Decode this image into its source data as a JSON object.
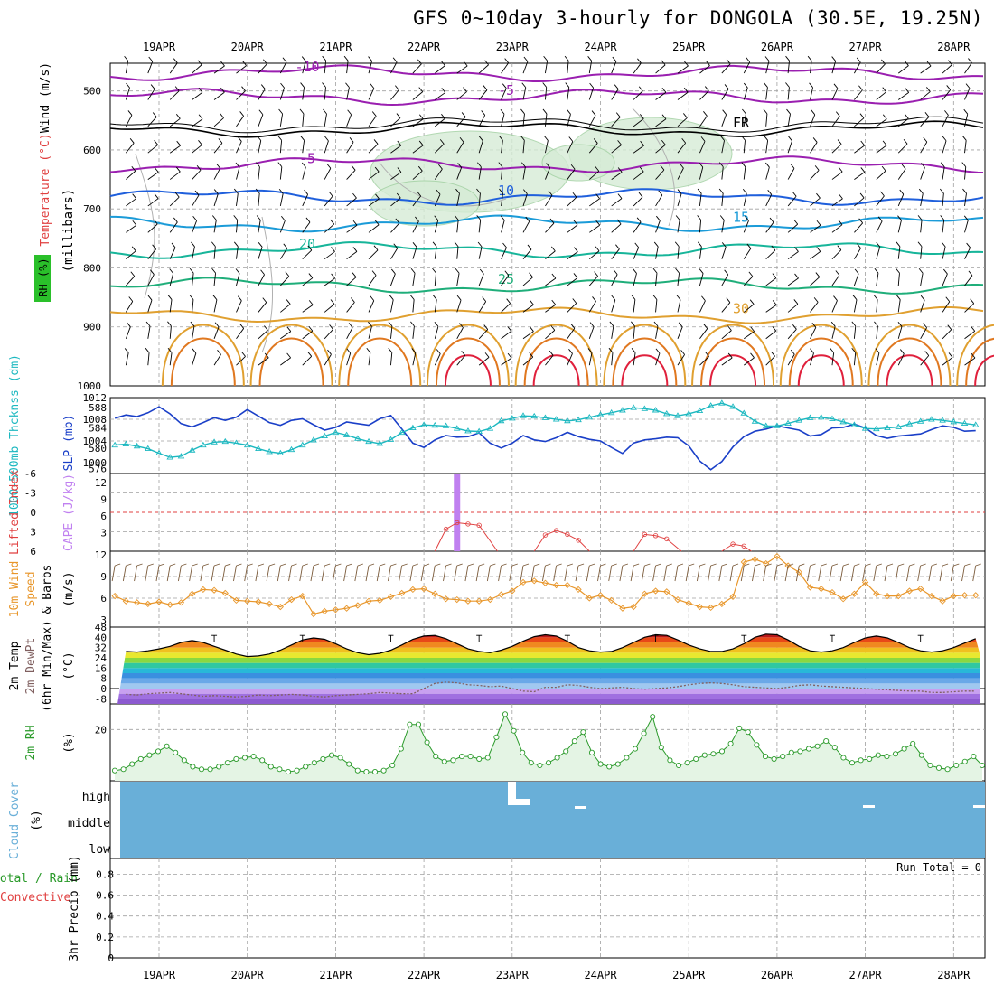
{
  "title": "GFS 0~10day 3-hourly for DONGOLA (30.5E, 19.25N)",
  "dates": [
    "19APR",
    "20APR",
    "21APR",
    "22APR",
    "23APR",
    "24APR",
    "25APR",
    "26APR",
    "27APR",
    "28APR"
  ],
  "colors": {
    "purple": "#9a1fb0",
    "black": "#000000",
    "blue": "#1f5fdc",
    "skyblue": "#1b9bd8",
    "teal": "#17b59a",
    "green": "#1fae7a",
    "orange": "#e0a030",
    "darkorange": "#e07820",
    "red": "#e0203c",
    "slp": "#1a3fc8",
    "thick": "#1cb8c0",
    "cape": "#c080f0",
    "li": "#e04040",
    "wind": "#e8962a",
    "barb": "#7a5a3a",
    "rh": "#2a9a2a",
    "rhfill": "#e4f4e4",
    "cloud": "#69afd8",
    "grid": "#a0a0a0"
  },
  "panels": {
    "profile": {
      "label_wind": "Wind (m/s)",
      "label_temp": "Temperature (°C)",
      "label_rh": "RH (%)",
      "label_mb": "(millibars)",
      "yticks": [
        "500",
        "600",
        "700",
        "800",
        "900",
        "1000"
      ],
      "contours": [
        {
          "label": "-10",
          "level": 470,
          "color": "purple"
        },
        {
          "label": "-5",
          "level": 510,
          "color": "purple"
        },
        {
          "label": "FR",
          "level": 565,
          "color": "black"
        },
        {
          "label": "-5",
          "level": 625,
          "color": "purple"
        },
        {
          "label": "10",
          "level": 680,
          "color": "blue"
        },
        {
          "label": "15",
          "level": 725,
          "color": "skyblue"
        },
        {
          "label": "20",
          "level": 770,
          "color": "teal"
        },
        {
          "label": "25",
          "level": 830,
          "color": "green"
        },
        {
          "label": "30",
          "level": 880,
          "color": "orange"
        }
      ]
    },
    "slp": {
      "label_thick": "1000-500mb Thcknss (dm)",
      "label_slp": "SLP (mb)",
      "left_ticks": [
        "588",
        "584",
        "580",
        "576"
      ],
      "right_ticks": [
        "1012",
        "1008",
        "1004",
        "1000"
      ]
    },
    "cape": {
      "label_li": "Lifted Index",
      "label_cape": "CAPE (J/kg)",
      "left_ticks": [
        "-6",
        "-3",
        "0",
        "3",
        "6"
      ],
      "right_ticks": [
        "12",
        "9",
        "6",
        "3"
      ]
    },
    "wind10": {
      "label_main": "10m Wind",
      "label_speed": "Speed",
      "label_barbs": "& Barbs",
      "label_units": "(m/s)",
      "yticks": [
        "12",
        "9",
        "6",
        "3"
      ]
    },
    "temp": {
      "label_1": "2m Temp",
      "label_2": "2m DewPt",
      "label_3": "(6hr Min/Max)",
      "label_units": "(°C)",
      "yticks": [
        "48",
        "40",
        "32",
        "24",
        "16",
        "8",
        "0",
        "-8"
      ]
    },
    "rh2m": {
      "label": "2m RH",
      "label_units": "(%)",
      "yticks": [
        "20"
      ]
    },
    "cloud": {
      "label": "Cloud Cover",
      "label_units": "(%)",
      "levels": [
        "high",
        "middle",
        "low"
      ]
    },
    "precip": {
      "label_total": "Total / Rain",
      "label_conv": "Convective",
      "label_main": "3hr Precip (mm)",
      "run_total": "Run Total = 0",
      "yticks": [
        "0.8",
        "0.6",
        "0.4",
        "0.2",
        "0"
      ]
    }
  },
  "chart_data": [
    {
      "type": "line",
      "name": "SLP (mb)",
      "ylim": [
        998,
        1012
      ],
      "values": [
        1007.5,
        1008.2,
        1008.8,
        1008.5,
        1009.2,
        1010.3,
        1009.0,
        1007.2,
        1006.6,
        1007.4,
        1008.3,
        1007.8,
        1008.4,
        1009.8,
        1008.6,
        1007.4,
        1006.9,
        1007.8,
        1008.1,
        1007.0,
        1006.0,
        1006.5,
        1007.5,
        1007.2,
        1006.9,
        1008.1,
        1008.7,
        1006.2,
        1003.6,
        1002.8,
        1004.2,
        1005.0,
        1004.7,
        1004.8,
        1005.5,
        1003.6,
        1002.7,
        1003.6,
        1005.0,
        1004.2,
        1003.9,
        1004.6,
        1005.6,
        1004.8,
        1004.3,
        1004.0,
        1002.8,
        1001.7,
        1003.6,
        1004.2,
        1004.4,
        1004.7,
        1004.6,
        1003.1,
        1000.3,
        998.7,
        1000.2,
        1002.9,
        1004.8,
        1005.8,
        1006.2,
        1006.8,
        1006.4,
        1006.0,
        1004.9,
        1005.2,
        1006.4,
        1006.5,
        1007.1,
        1006.4,
        1005.0,
        1004.5,
        1004.9,
        1005.1,
        1005.3,
        1006.1,
        1006.8,
        1006.5,
        1005.8,
        1005.9,
        1007.6,
        1005.9,
        1004.3,
        1003.2,
        1005.3,
        1006.4,
        1006.6,
        1006.9
      ]
    },
    {
      "type": "line",
      "name": "1000-500mb Thickness (dm)",
      "ylim": [
        575,
        590
      ],
      "values": [
        580.2,
        580.6,
        580.8,
        580.4,
        579.9,
        579.0,
        578.2,
        578.4,
        579.6,
        580.6,
        581.2,
        581.3,
        581.0,
        580.6,
        579.9,
        579.3,
        579.0,
        579.7,
        580.6,
        581.6,
        582.4,
        583.1,
        582.6,
        581.9,
        581.3,
        580.9,
        581.7,
        583.1,
        584.0,
        584.6,
        584.5,
        584.4,
        583.9,
        583.4,
        583.3,
        583.9,
        585.4,
        585.9,
        586.4,
        586.3,
        586.0,
        585.7,
        585.4,
        585.6,
        586.1,
        586.6,
        587.0,
        587.5,
        588.0,
        587.8,
        587.5,
        586.8,
        586.4,
        586.8,
        587.4,
        588.4,
        588.9,
        588.2,
        586.9,
        585.3,
        584.4,
        584.4,
        584.9,
        585.5,
        586.0,
        586.1,
        585.8,
        585.2,
        584.6,
        583.9,
        583.8,
        584.0,
        584.2,
        584.8,
        585.3,
        585.7,
        585.5,
        585.2,
        584.9,
        584.6,
        584.9,
        585.3,
        586.1,
        586.0,
        584.8,
        583.4,
        582.9,
        583.2
      ]
    },
    {
      "type": "line",
      "name": "10m Wind Speed (m/s)",
      "ylim": [
        3,
        12
      ],
      "values": [
        6.0,
        6.3,
        5.6,
        5.4,
        5.2,
        5.5,
        5.1,
        5.4,
        6.6,
        7.2,
        7.1,
        6.7,
        5.7,
        5.6,
        5.5,
        5.2,
        4.8,
        5.8,
        6.3,
        3.8,
        4.2,
        4.4,
        4.6,
        5.0,
        5.6,
        5.7,
        6.2,
        6.7,
        7.2,
        7.3,
        6.6,
        5.9,
        5.8,
        5.6,
        5.6,
        5.8,
        6.5,
        7.0,
        8.2,
        8.4,
        8.1,
        7.8,
        7.8,
        7.2,
        6.0,
        6.4,
        5.7,
        4.6,
        4.8,
        6.6,
        7.0,
        6.9,
        5.8,
        5.3,
        4.8,
        4.7,
        5.2,
        6.2,
        11.0,
        11.4,
        10.8,
        11.8,
        10.5,
        9.6,
        7.5,
        7.3,
        6.8,
        5.9,
        6.6,
        8.2,
        6.6,
        6.3,
        6.3,
        7.0,
        7.3,
        6.3,
        5.6,
        6.3,
        6.4,
        6.4,
        6.6,
        7.0,
        6.2,
        5.2,
        6.4,
        4.8,
        4.6,
        7.2
      ]
    },
    {
      "type": "area",
      "name": "2m Temp (°C)",
      "ylim": [
        -12,
        48
      ],
      "values": [
        30,
        29,
        28.5,
        29.5,
        31,
        33,
        36,
        37.5,
        36,
        33,
        30,
        27,
        25,
        25.5,
        27,
        30,
        34,
        38,
        39.5,
        38.5,
        35,
        31,
        28,
        26.5,
        27.5,
        30,
        34,
        38.5,
        41,
        41.5,
        39,
        35,
        31,
        29,
        28,
        30,
        33,
        37,
        40.5,
        42,
        41,
        37,
        32,
        29.5,
        28.5,
        29,
        32,
        36,
        40,
        42,
        41.5,
        38,
        34,
        31,
        29,
        29,
        31,
        35,
        40,
        42.5,
        42,
        38,
        33,
        29.5,
        28.5,
        29.5,
        32,
        36,
        39.5,
        41,
        39.5,
        36,
        32,
        29.5,
        28.5,
        29.5,
        32,
        35.5,
        39,
        40.5,
        39.5,
        36,
        32,
        29.5,
        28,
        29.5,
        32,
        35.5
      ]
    },
    {
      "type": "line",
      "name": "2m DewPt (°C)",
      "ylim": [
        -12,
        48
      ],
      "values": [
        -5,
        -4.5,
        -5,
        -4,
        -3.5,
        -3,
        -4,
        -5,
        -6,
        -5.5,
        -6,
        -6.5,
        -6,
        -5,
        -5.5,
        -5,
        -4.5,
        -5,
        -6,
        -6.5,
        -5.5,
        -5,
        -4.5,
        -4,
        -3,
        -3.5,
        -4,
        -4,
        0,
        4,
        5,
        4.5,
        3,
        2.5,
        1.5,
        2,
        0,
        -2,
        -2.5,
        1,
        1,
        3,
        2.5,
        1,
        0,
        0.5,
        1,
        0,
        -0.5,
        0,
        0.5,
        1.5,
        3,
        4,
        4.5,
        4,
        3,
        1.5,
        1,
        0.5,
        0,
        1,
        2.5,
        3,
        2,
        1.5,
        1,
        0.5,
        0,
        -0.5,
        -1,
        -1.5,
        -2,
        -2,
        -3,
        -3,
        -2.5,
        -2,
        -2,
        -3,
        -3.5,
        -4,
        -4.5,
        -5,
        -5.5,
        -6,
        -5.5,
        -6
      ]
    },
    {
      "type": "area",
      "name": "2m RH (%)",
      "ylim": [
        0,
        30
      ],
      "values": [
        4,
        4.5,
        6.5,
        8.5,
        10,
        11.5,
        13.5,
        11,
        8,
        5.5,
        4.5,
        4.5,
        5.5,
        7,
        8.5,
        9,
        9.5,
        8,
        5.5,
        4.5,
        3.5,
        4,
        5.5,
        7,
        8.5,
        10,
        9,
        6.5,
        4,
        3.5,
        3.5,
        4,
        6,
        12.5,
        22,
        22,
        15,
        9.5,
        7.5,
        8,
        9.5,
        9.5,
        8.5,
        9,
        17,
        26,
        19.5,
        11,
        7,
        6,
        7,
        9,
        11.5,
        15.5,
        19,
        11,
        6.5,
        5.5,
        6.5,
        9,
        12.5,
        18.5,
        25,
        13,
        8,
        6,
        7,
        8.5,
        10,
        10.5,
        11.5,
        14.5,
        20.5,
        19,
        14,
        9.5,
        8.5,
        9.5,
        11,
        11.5,
        12.5,
        13.5,
        15.5,
        13,
        9,
        7,
        8,
        8.5,
        10,
        9.5,
        10.5,
        12.5,
        14.5,
        10,
        6,
        5,
        4.5,
        6,
        7.5,
        9.5,
        6
      ]
    },
    {
      "type": "line",
      "name": "Lifted Index",
      "ylim": [
        -6,
        6
      ],
      "values": [
        {
          "x": "22APR",
          "y": 5.5
        },
        {
          "x": "22APR",
          "y": 2.5
        },
        {
          "x": "22APR",
          "y": 2.6
        },
        {
          "x": "22APR",
          "y": 2.6
        },
        {
          "x": "23APR",
          "y": 5.3
        },
        {
          "x": "23APR",
          "y": 4.3
        },
        {
          "x": "23APR",
          "y": 4.0
        },
        {
          "x": "24APR",
          "y": 4.8
        },
        {
          "x": "24APR",
          "y": 4.3
        },
        {
          "x": "24APR",
          "y": 4.5
        },
        {
          "x": "25APR",
          "y": 4.5
        },
        {
          "x": "25APR",
          "y": 5.1
        }
      ]
    },
    {
      "type": "bar",
      "name": "CAPE (J/kg)",
      "categories": [
        "22APR"
      ],
      "values": [
        14
      ]
    },
    {
      "type": "line",
      "name": "3hr Precip (mm)",
      "ylim": [
        0,
        1
      ],
      "values": [
        0
      ],
      "xlabel": "",
      "ylabel": "3hr Precip (mm)"
    }
  ]
}
